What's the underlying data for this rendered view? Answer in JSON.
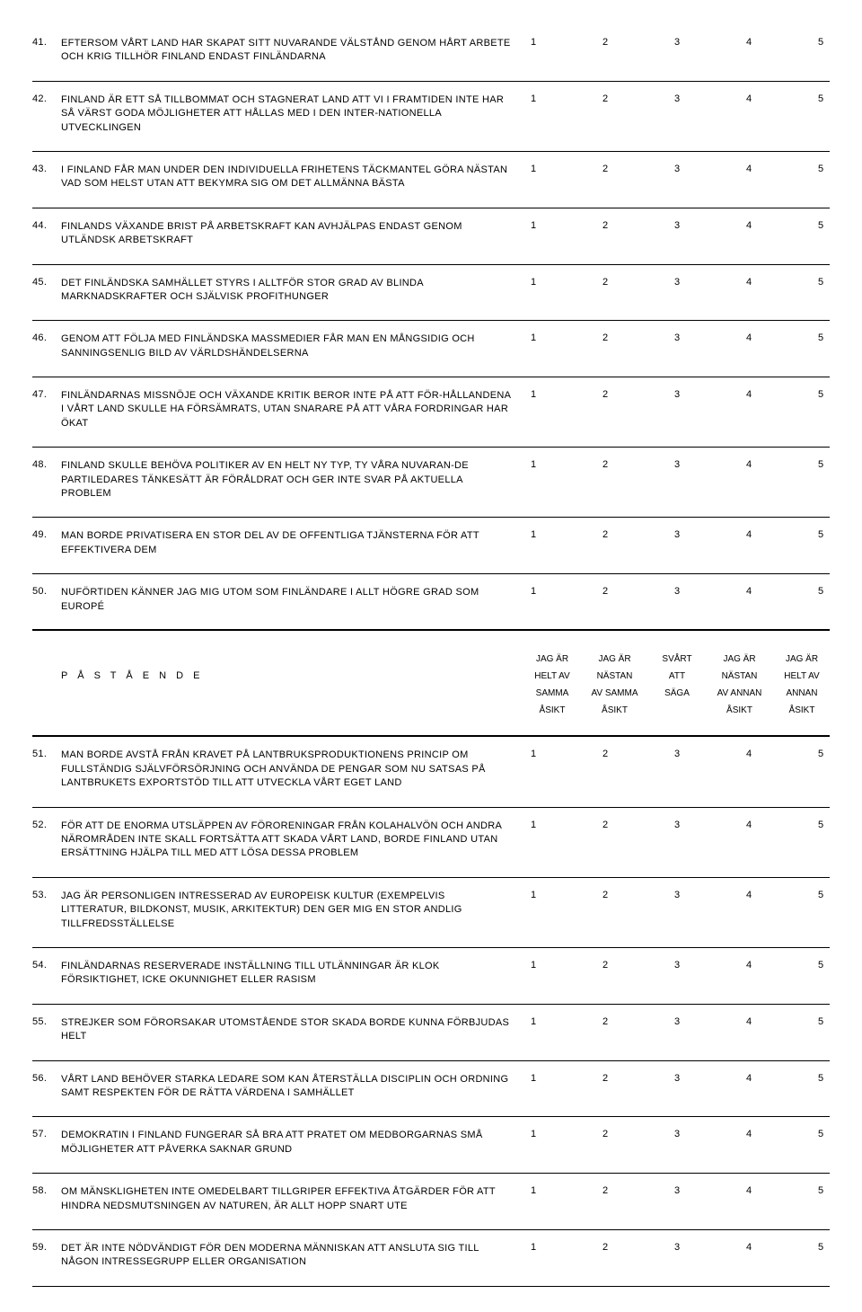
{
  "scale_values": [
    "1",
    "2",
    "3",
    "4",
    "5"
  ],
  "header": {
    "title": "P Å S T Å E N D E",
    "cols": [
      [
        "JAG ÄR",
        "HELT AV",
        "SAMMA",
        "ÅSIKT"
      ],
      [
        "JAG ÄR",
        "NÄSTAN",
        "AV SAMMA",
        "ÅSIKT"
      ],
      [
        "SVÅRT",
        "ATT",
        "SÄGA",
        ""
      ],
      [
        "JAG ÄR",
        "NÄSTAN",
        "AV ANNAN",
        "ÅSIKT"
      ],
      [
        "JAG ÄR",
        "HELT AV",
        "ANNAN",
        "ÅSIKT"
      ]
    ]
  },
  "items": [
    {
      "n": "41.",
      "t": "EFTERSOM VÅRT LAND HAR SKAPAT SITT NUVARANDE VÄLSTÅND GENOM HÅRT ARBETE OCH KRIG TILLHÖR FINLAND ENDAST FINLÄNDARNA"
    },
    {
      "n": "42.",
      "t": "FINLAND ÄR ETT SÅ TILLBOMMAT OCH STAGNERAT LAND ATT VI I FRAMTIDEN INTE HAR SÅ VÄRST GODA MÖJLIGHETER ATT HÅLLAS MED I DEN INTER-NATIONELLA UTVECKLINGEN"
    },
    {
      "n": "43.",
      "t": "I FINLAND FÅR MAN UNDER DEN INDIVIDUELLA FRIHETENS TÄCKMANTEL GÖRA NÄSTAN VAD SOM HELST UTAN ATT BEKYMRA SIG OM DET ALLMÄNNA BÄSTA"
    },
    {
      "n": "44.",
      "t": "FINLANDS VÄXANDE BRIST PÅ ARBETSKRAFT KAN AVHJÄLPAS ENDAST GENOM UTLÄNDSK ARBETSKRAFT"
    },
    {
      "n": "45.",
      "t": "DET FINLÄNDSKA SAMHÄLLET STYRS I ALLTFÖR STOR GRAD AV BLINDA MARKNADSKRAFTER OCH SJÄLVISK PROFITHUNGER"
    },
    {
      "n": "46.",
      "t": "GENOM ATT FÖLJA MED FINLÄNDSKA MASSMEDIER FÅR MAN EN MÅNGSIDIG OCH SANNINGSENLIG BILD AV VÄRLDSHÄNDELSERNA"
    },
    {
      "n": "47.",
      "t": "FINLÄNDARNAS MISSNÖJE OCH VÄXANDE KRITIK BEROR INTE PÅ ATT FÖR-HÅLLANDENA I VÅRT LAND SKULLE HA FÖRSÄMRATS, UTAN SNARARE PÅ ATT VÅRA FORDRINGAR HAR ÖKAT"
    },
    {
      "n": "48.",
      "t": "FINLAND SKULLE BEHÖVA POLITIKER AV EN HELT NY TYP, TY VÅRA NUVARAN-DE PARTILEDARES TÄNKESÄTT ÄR FÖRÅLDRAT OCH GER INTE SVAR PÅ AKTUELLA PROBLEM"
    },
    {
      "n": "49.",
      "t": "MAN BORDE PRIVATISERA EN STOR DEL AV DE OFFENTLIGA TJÄNSTERNA FÖR ATT EFFEKTIVERA DEM"
    },
    {
      "n": "50.",
      "t": "NUFÖRTIDEN KÄNNER JAG MIG UTOM SOM FINLÄNDARE I ALLT HÖGRE GRAD SOM EUROPÉ"
    },
    {
      "header": true
    },
    {
      "n": "51.",
      "t": "MAN BORDE AVSTÅ FRÅN KRAVET PÅ LANTBRUKSPRODUKTIONENS PRINCIP OM FULLSTÄNDIG SJÄLVFÖRSÖRJNING OCH ANVÄNDA DE PENGAR SOM NU SATSAS PÅ LANTBRUKETS EXPORTSTÖD TILL ATT UTVECKLA VÅRT EGET LAND"
    },
    {
      "n": "52.",
      "t": "FÖR ATT DE ENORMA UTSLÄPPEN AV FÖRORENINGAR FRÅN KOLAHALVÖN OCH ANDRA NÄROMRÅDEN INTE SKALL FORTSÄTTA ATT SKADA VÅRT LAND, BORDE FINLAND UTAN ERSÄTTNING HJÄLPA TILL MED ATT LÖSA DESSA PROBLEM"
    },
    {
      "n": "53.",
      "t": "JAG ÄR PERSONLIGEN INTRESSERAD AV EUROPEISK KULTUR (EXEMPELVIS LITTERATUR, BILDKONST, MUSIK, ARKITEKTUR) DEN GER MIG EN STOR ANDLIG TILLFREDSSTÄLLELSE"
    },
    {
      "n": "54.",
      "t": "FINLÄNDARNAS RESERVERADE INSTÄLLNING TILL UTLÄNNINGAR ÄR KLOK FÖRSIKTIGHET, ICKE OKUNNIGHET ELLER RASISM"
    },
    {
      "n": "55.",
      "t": "STREJKER SOM FÖRORSAKAR UTOMSTÅENDE STOR SKADA BORDE KUNNA FÖRBJUDAS HELT"
    },
    {
      "n": "56.",
      "t": "VÅRT LAND BEHÖVER STARKA LEDARE SOM KAN ÅTERSTÄLLA DISCIPLIN OCH ORDNING SAMT RESPEKTEN FÖR DE RÄTTA VÄRDENA I SAMHÄLLET"
    },
    {
      "n": "57.",
      "t": "DEMOKRATIN I FINLAND FUNGERAR SÅ BRA ATT PRATET OM MEDBORGARNAS SMÅ MÖJLIGHETER ATT PÅVERKA SAKNAR GRUND"
    },
    {
      "n": "58.",
      "t": "OM MÄNSKLIGHETEN INTE OMEDELBART TILLGRIPER EFFEKTIVA ÅTGÄRDER FÖR ATT HINDRA NEDSMUTSNINGEN AV NATUREN, ÄR ALLT HOPP SNART UTE"
    },
    {
      "n": "59.",
      "t": "DET ÄR INTE NÖDVÄNDIGT FÖR DEN MODERNA MÄNNISKAN ATT ANSLUTA SIG TILL NÅGON INTRESSEGRUPP ELLER ORGANISATION"
    }
  ]
}
